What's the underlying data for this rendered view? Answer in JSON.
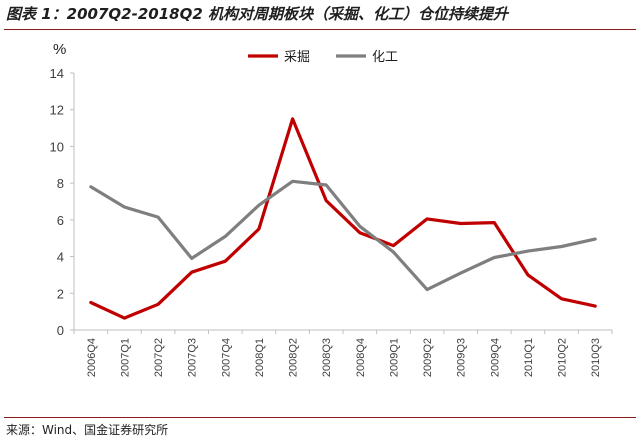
{
  "title": "图表 1：2007Q2-2018Q2 机构对周期板块（采掘、化工）仓位持续提升",
  "source": "来源：Wind、国金证券研究所",
  "chart_data": {
    "type": "line",
    "ylabel": "%",
    "xlabel": "",
    "ylim": [
      0,
      14
    ],
    "yticks": [
      0,
      2,
      4,
      6,
      8,
      10,
      12,
      14
    ],
    "legend_position": "top-center",
    "grid": false,
    "categories": [
      "2006Q4",
      "2007Q1",
      "2007Q2",
      "2007Q3",
      "2007Q4",
      "2008Q1",
      "2008Q2",
      "2008Q3",
      "2008Q4",
      "2009Q1",
      "2009Q2",
      "2009Q3",
      "2009Q4",
      "2010Q1",
      "2010Q2",
      "2010Q3"
    ],
    "series": [
      {
        "name": "采掘",
        "color": "#c00000",
        "values": [
          1.5,
          0.65,
          1.4,
          3.15,
          3.75,
          5.5,
          11.5,
          7.05,
          5.3,
          4.6,
          6.05,
          5.8,
          5.85,
          3.0,
          1.7,
          1.3
        ]
      },
      {
        "name": "化工",
        "color": "#7f7f7f",
        "values": [
          7.8,
          6.7,
          6.15,
          3.9,
          5.1,
          6.8,
          8.1,
          7.9,
          5.65,
          4.25,
          2.2,
          3.1,
          3.95,
          4.3,
          4.55,
          4.95
        ]
      }
    ]
  }
}
